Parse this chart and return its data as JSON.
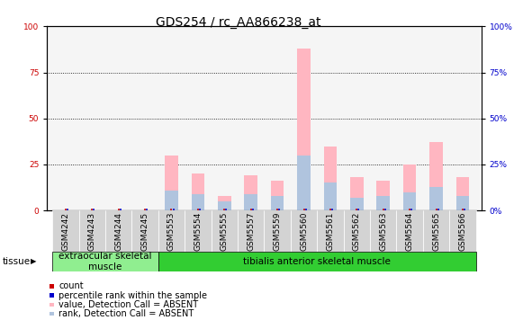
{
  "title": "GDS254 / rc_AA866238_at",
  "samples": [
    "GSM4242",
    "GSM4243",
    "GSM4244",
    "GSM4245",
    "GSM5553",
    "GSM5554",
    "GSM5555",
    "GSM5557",
    "GSM5559",
    "GSM5560",
    "GSM5561",
    "GSM5562",
    "GSM5563",
    "GSM5564",
    "GSM5565",
    "GSM5566"
  ],
  "value_absent": [
    0,
    0,
    0,
    0,
    30,
    20,
    8,
    19,
    16,
    88,
    35,
    18,
    16,
    25,
    37,
    18
  ],
  "rank_absent": [
    0,
    0,
    0,
    0,
    11,
    9,
    5,
    9,
    8,
    30,
    15,
    7,
    8,
    10,
    13,
    8
  ],
  "tissue_groups": [
    {
      "label": "extraocular skeletal\nmuscle",
      "start": 0,
      "end": 3,
      "color": "#90ee90"
    },
    {
      "label": "tibialis anterior skeletal muscle",
      "start": 4,
      "end": 15,
      "color": "#32cd32"
    }
  ],
  "bar_width": 0.5,
  "ylim": [
    0,
    100
  ],
  "color_value_absent": "#ffb6c1",
  "color_rank_absent": "#b0c4de",
  "color_count": "#cc0000",
  "color_percentile": "#0000cc",
  "bg_plot": "#f5f5f5",
  "bg_xtick": "#d3d3d3",
  "title_fontsize": 10,
  "tick_fontsize": 6.5,
  "legend_fontsize": 7,
  "tissue_label_fontsize": 7.5,
  "yaxis_left_color": "#cc0000",
  "yaxis_right_color": "#0000cc",
  "grid_yticks": [
    0,
    25,
    50,
    75,
    100
  ]
}
